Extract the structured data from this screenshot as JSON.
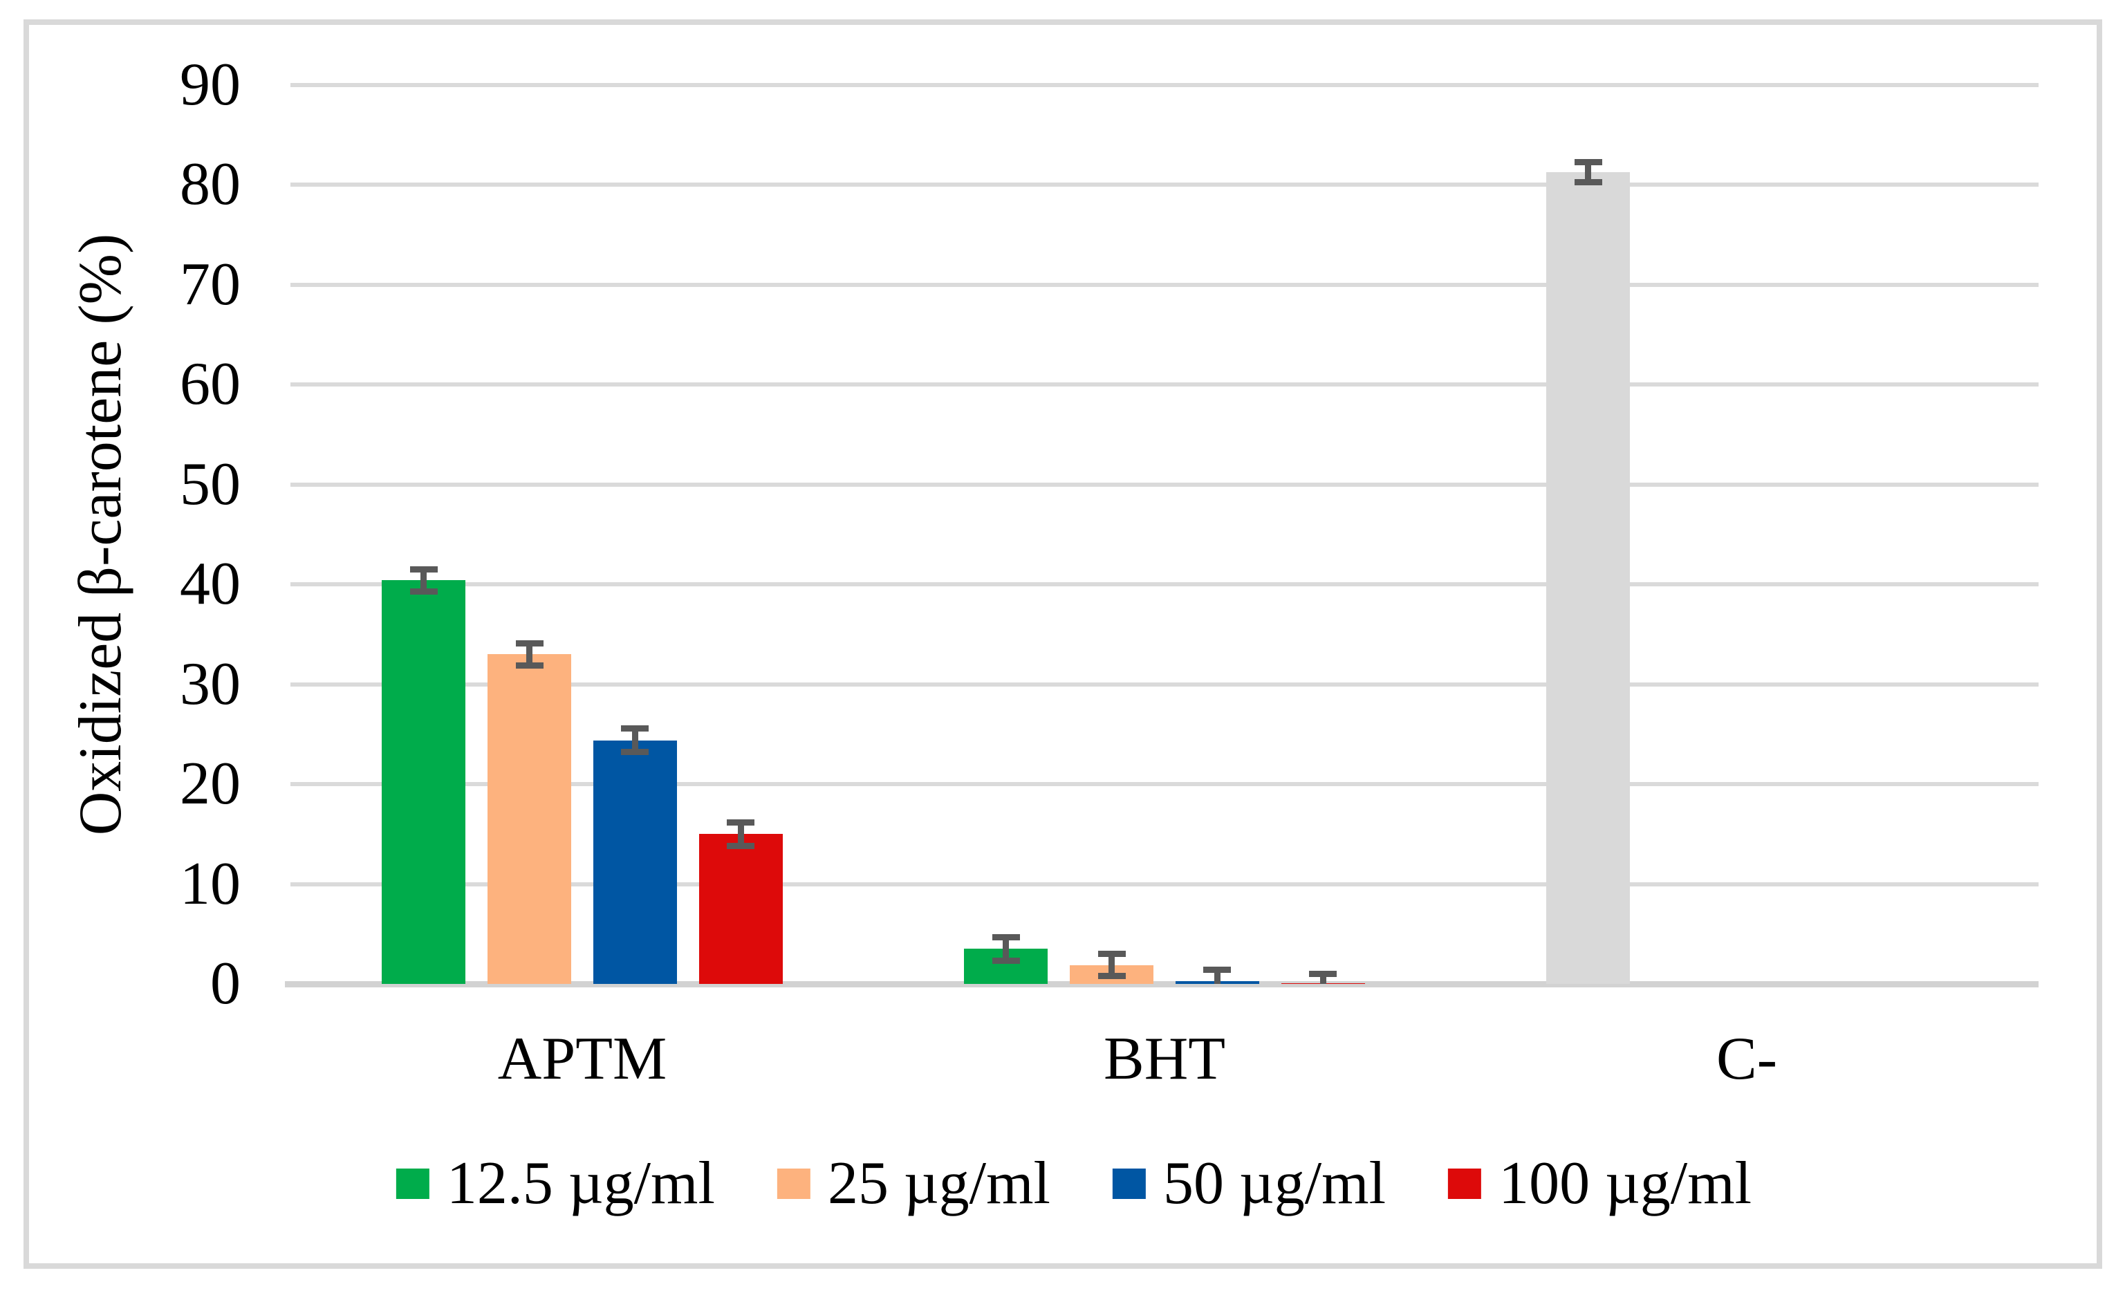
{
  "chart_data": {
    "type": "bar",
    "title": "",
    "xlabel": "",
    "ylabel": "Oxidized β-carotene (%)",
    "ylim": [
      0,
      90
    ],
    "ytick_step": 10,
    "ytick_labels": [
      "0",
      "10",
      "20",
      "30",
      "40",
      "50",
      "60",
      "70",
      "80",
      "90"
    ],
    "grid": true,
    "legend_position": "bottom",
    "categories": [
      "APTM",
      "BHT",
      "C-"
    ],
    "series": [
      {
        "name": "12.5 µg/ml",
        "color": "#00AC4B",
        "values": [
          40.4,
          3.5,
          null
        ],
        "errors": [
          1.1,
          1.2,
          null
        ]
      },
      {
        "name": "25 µg/ml",
        "color": "#FDB27E",
        "values": [
          33.0,
          1.9,
          null
        ],
        "errors": [
          1.1,
          1.1,
          null
        ]
      },
      {
        "name": "50 µg/ml",
        "color": "#0056A3",
        "values": [
          24.4,
          0.3,
          null
        ],
        "errors": [
          1.2,
          1.1,
          null
        ]
      },
      {
        "name": "100 µg/ml",
        "color": "#DD0A0A",
        "values": [
          15.0,
          0.1,
          null
        ],
        "errors": [
          1.2,
          0.9,
          null
        ]
      }
    ],
    "control_bar": {
      "name": "C-",
      "category": "C-",
      "slot": 0,
      "value": 81.3,
      "error": 1.0,
      "color": "#D9D9D9"
    },
    "colors": {
      "error_bar": "#595959",
      "gridline": "#DADADA",
      "axis_line": "#D2D2D2",
      "frame_border": "#D9D9D9",
      "background": "#FFFFFF"
    }
  }
}
